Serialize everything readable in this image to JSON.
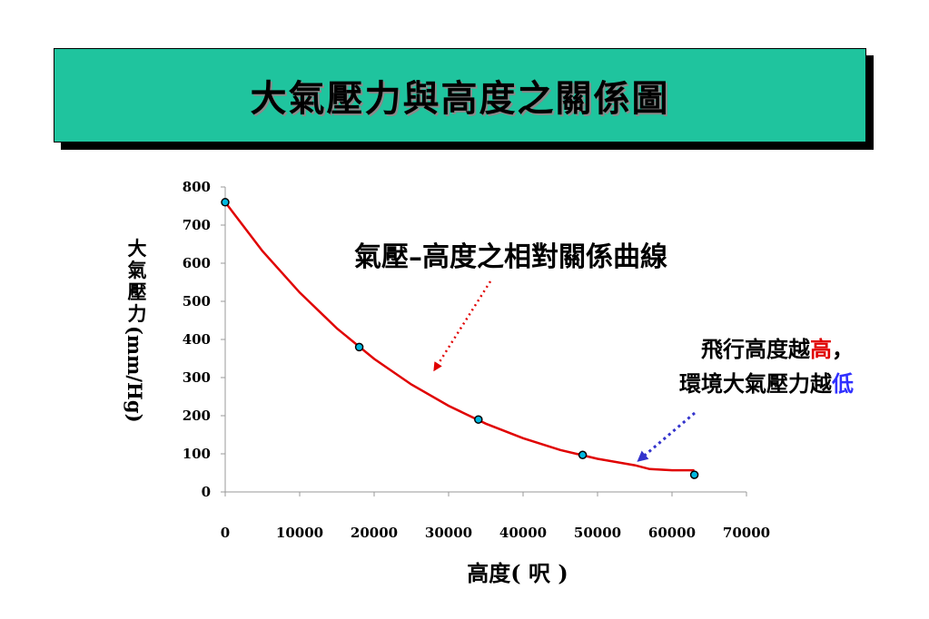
{
  "title": "大氣壓力與高度之關係圖",
  "annotations": {
    "curve_label": "氣壓–高度之相對關係曲線",
    "note_line1_prefix": "飛行高度越",
    "note_line1_highlight": "高",
    "note_line1_suffix": "，",
    "note_line2_prefix": "環境大氣壓力越",
    "note_line2_highlight": "低"
  },
  "colors": {
    "title_bg": "#1fc49e",
    "curve": "#e00000",
    "points": "#00b8e0",
    "arrow_red": "#e00000",
    "arrow_blue": "#3333cc",
    "highlight_high": "#e00000",
    "highlight_low": "#3030ff"
  },
  "chart_data": {
    "type": "scatter",
    "title": "",
    "xlabel": "高度( 呎 )",
    "ylabel_cjk": [
      "大",
      "氣",
      "壓",
      "力"
    ],
    "ylabel_unit": "(mm/Hg)",
    "xlim": [
      0,
      70000
    ],
    "ylim": [
      0,
      800
    ],
    "x_ticks": [
      0,
      10000,
      20000,
      30000,
      40000,
      50000,
      60000,
      70000
    ],
    "y_ticks": [
      0,
      100,
      200,
      300,
      400,
      500,
      600,
      700,
      800
    ],
    "grid": false,
    "points": [
      {
        "x": 0,
        "y": 760
      },
      {
        "x": 18000,
        "y": 380
      },
      {
        "x": 34000,
        "y": 190
      },
      {
        "x": 48000,
        "y": 97
      },
      {
        "x": 63000,
        "y": 45
      }
    ],
    "curve": [
      {
        "x": 0,
        "y": 760
      },
      {
        "x": 5000,
        "y": 632
      },
      {
        "x": 10000,
        "y": 523
      },
      {
        "x": 15000,
        "y": 429
      },
      {
        "x": 20000,
        "y": 349
      },
      {
        "x": 25000,
        "y": 282
      },
      {
        "x": 30000,
        "y": 226
      },
      {
        "x": 35000,
        "y": 179
      },
      {
        "x": 40000,
        "y": 141
      },
      {
        "x": 45000,
        "y": 110
      },
      {
        "x": 50000,
        "y": 87
      },
      {
        "x": 55000,
        "y": 70
      },
      {
        "x": 57000,
        "y": 60
      },
      {
        "x": 60000,
        "y": 57
      },
      {
        "x": 63000,
        "y": 57
      }
    ]
  }
}
